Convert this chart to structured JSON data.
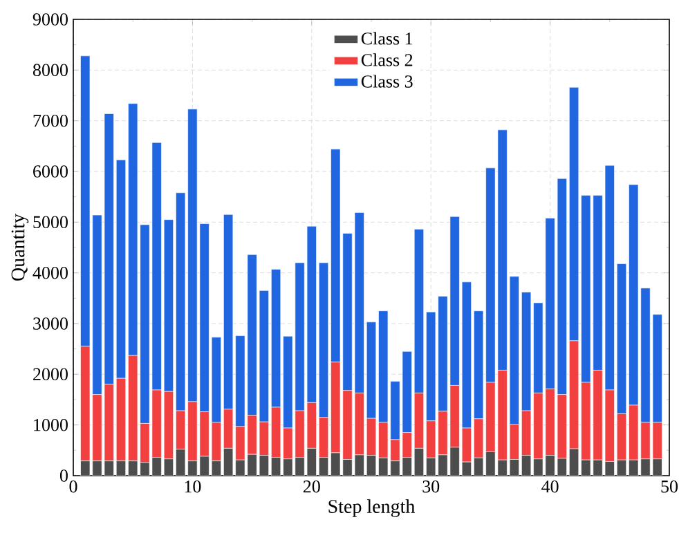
{
  "chart_data": {
    "type": "bar",
    "stacked": true,
    "xlabel": "Step length",
    "ylabel": "Quantity",
    "x": [
      1,
      2,
      3,
      4,
      5,
      6,
      7,
      8,
      9,
      10,
      11,
      12,
      13,
      14,
      15,
      16,
      17,
      18,
      19,
      20,
      21,
      22,
      23,
      24,
      25,
      26,
      27,
      28,
      29,
      30,
      31,
      32,
      33,
      34,
      35,
      36,
      37,
      38,
      39,
      40,
      41,
      42,
      43,
      44,
      45,
      46,
      47,
      48,
      49
    ],
    "series": [
      {
        "name": "Class 1",
        "color": "#4d4d4d",
        "values": [
          290,
          290,
          290,
          290,
          290,
          260,
          360,
          330,
          520,
          290,
          380,
          290,
          540,
          310,
          420,
          400,
          360,
          330,
          360,
          540,
          360,
          450,
          320,
          410,
          400,
          350,
          290,
          360,
          540,
          350,
          410,
          560,
          270,
          350,
          470,
          310,
          320,
          400,
          330,
          400,
          340,
          530,
          310,
          310,
          280,
          310,
          310,
          330,
          330
        ]
      },
      {
        "name": "Class 2",
        "color": "#f23f3f",
        "values": [
          2260,
          1310,
          1510,
          1630,
          2080,
          770,
          1330,
          1330,
          760,
          1170,
          880,
          760,
          770,
          660,
          770,
          660,
          990,
          610,
          920,
          900,
          790,
          1790,
          1360,
          1220,
          730,
          700,
          420,
          490,
          1090,
          730,
          860,
          1220,
          670,
          770,
          1370,
          1770,
          690,
          880,
          1300,
          1310,
          1260,
          2130,
          1530,
          1770,
          1410,
          910,
          1080,
          720,
          720
        ]
      },
      {
        "name": "Class 3",
        "color": "#1f66e0",
        "values": [
          5730,
          3540,
          5340,
          4310,
          4970,
          3920,
          4880,
          3390,
          4300,
          5770,
          3710,
          1680,
          3840,
          1790,
          3170,
          2590,
          2720,
          1810,
          2920,
          3480,
          3050,
          4200,
          3100,
          3560,
          1900,
          2200,
          1150,
          1600,
          3230,
          2150,
          2270,
          3330,
          2880,
          2130,
          4230,
          4740,
          2920,
          2340,
          1780,
          3370,
          4260,
          5000,
          3690,
          3450,
          4430,
          2960,
          4350,
          2650,
          2130
        ]
      }
    ],
    "xlim": [
      0,
      50
    ],
    "xticks": [
      0,
      10,
      20,
      30,
      40,
      50
    ],
    "ylim": [
      0,
      9000
    ],
    "yticks": [
      0,
      1000,
      2000,
      3000,
      4000,
      5000,
      6000,
      7000,
      8000,
      9000
    ],
    "grid": true,
    "legend": "top right"
  }
}
